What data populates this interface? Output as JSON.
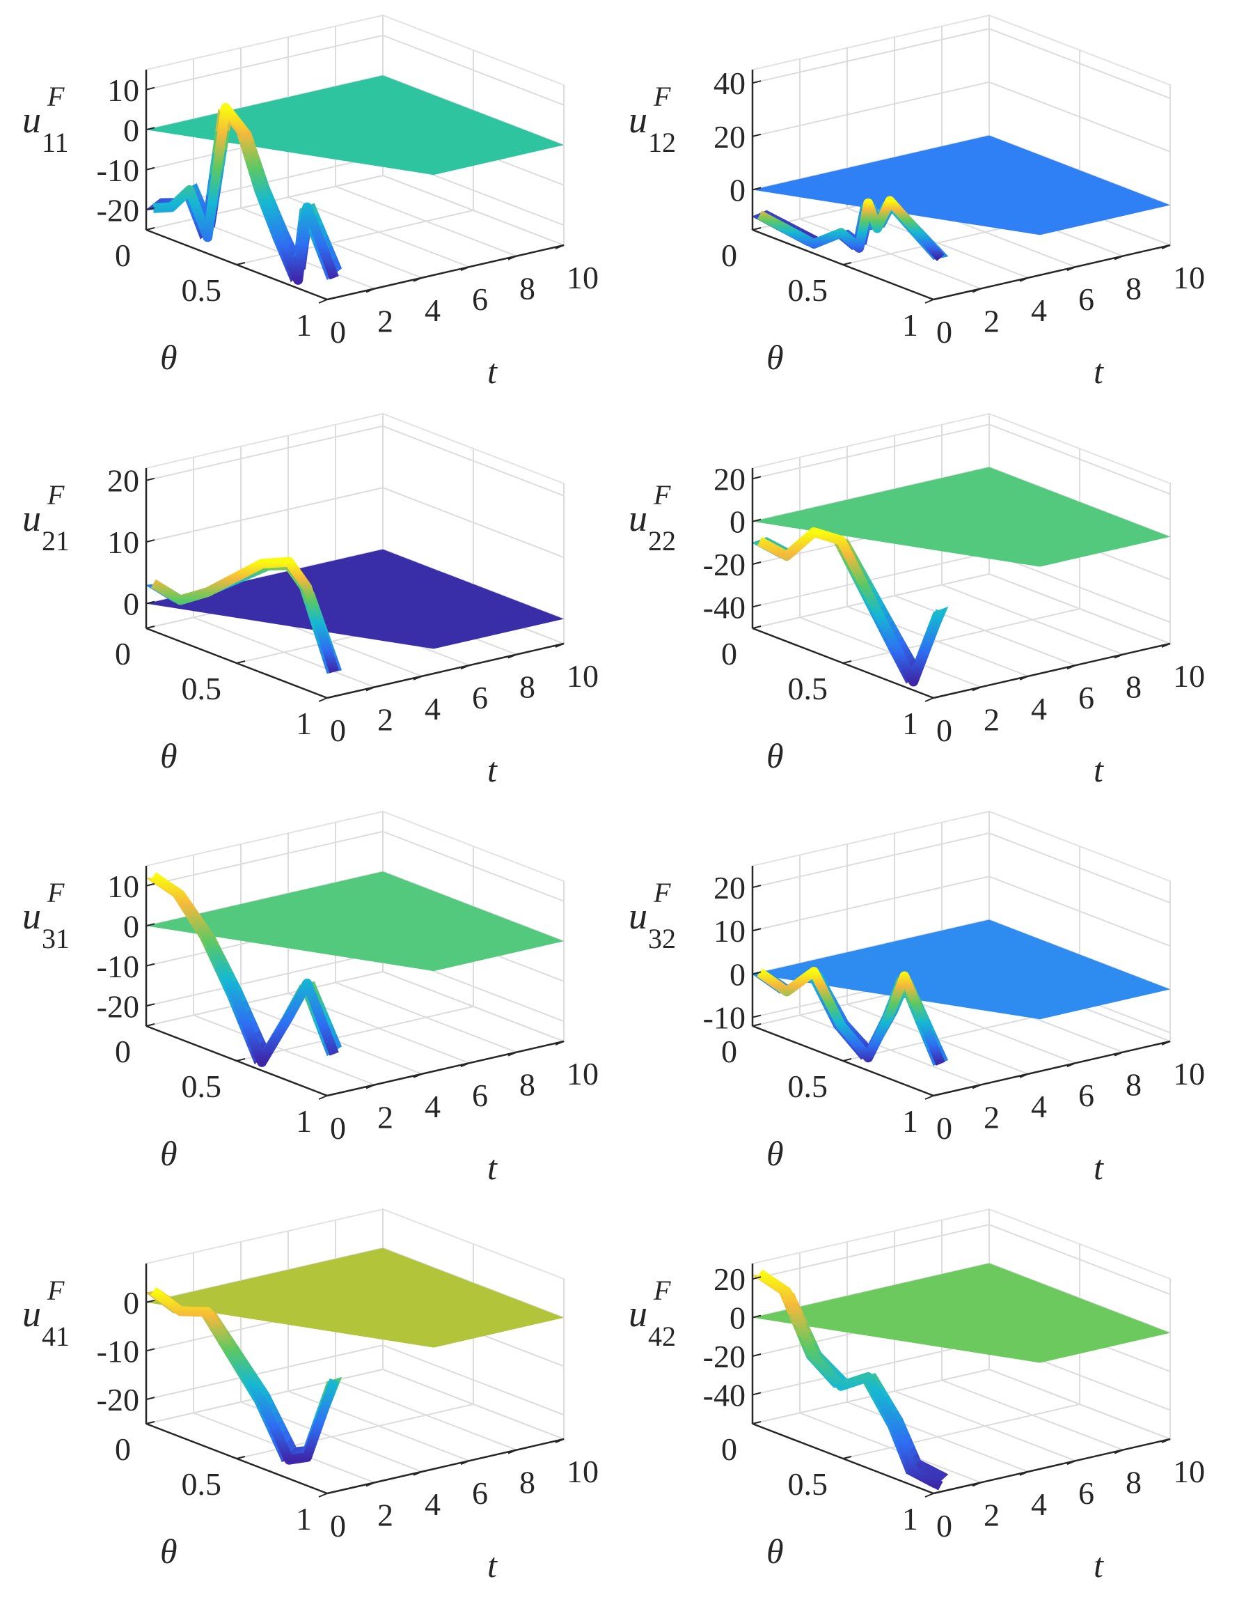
{
  "chart_data": [
    {
      "type": "surface",
      "panel": "u11",
      "zlabel": {
        "base": "u",
        "sup": "F",
        "sub": "11"
      },
      "xlabel": "t",
      "ylabel": "θ",
      "xlim": [
        0,
        10
      ],
      "ylim": [
        0,
        1
      ],
      "zlim": [
        -25,
        15
      ],
      "xticks": [
        "0",
        "2",
        "4",
        "6",
        "8",
        "10"
      ],
      "yticks": [
        "0",
        "0.5",
        "1"
      ],
      "zticks": [
        "10",
        "0",
        "-10",
        "-20"
      ],
      "plateau_value": 0,
      "plateau_color": "#2ec4a0",
      "profile": [
        {
          "theta": 0.0,
          "value": -20
        },
        {
          "theta": 0.1,
          "value": -18
        },
        {
          "theta": 0.2,
          "value": -12
        },
        {
          "theta": 0.3,
          "value": -22
        },
        {
          "theta": 0.4,
          "value": 12
        },
        {
          "theta": 0.5,
          "value": 8
        },
        {
          "theta": 0.6,
          "value": -5
        },
        {
          "theta": 0.7,
          "value": -15
        },
        {
          "theta": 0.8,
          "value": -24
        },
        {
          "theta": 0.85,
          "value": -5
        },
        {
          "theta": 1.0,
          "value": -20
        }
      ]
    },
    {
      "type": "surface",
      "panel": "u12",
      "zlabel": {
        "base": "u",
        "sup": "F",
        "sub": "12"
      },
      "xlabel": "t",
      "ylabel": "θ",
      "xlim": [
        0,
        10
      ],
      "ylim": [
        0,
        1
      ],
      "zlim": [
        -15,
        45
      ],
      "xticks": [
        "0",
        "2",
        "4",
        "6",
        "8",
        "10"
      ],
      "yticks": [
        "0",
        "0.5",
        "1"
      ],
      "zticks": [
        "40",
        "20",
        "0"
      ],
      "plateau_value": 0,
      "plateau_color": "#2f7ff5",
      "profile": [
        {
          "theta": 0.0,
          "value": -10
        },
        {
          "theta": 0.2,
          "value": -12
        },
        {
          "theta": 0.3,
          "value": -13
        },
        {
          "theta": 0.45,
          "value": -5
        },
        {
          "theta": 0.55,
          "value": -8
        },
        {
          "theta": 0.6,
          "value": 10
        },
        {
          "theta": 0.65,
          "value": 2
        },
        {
          "theta": 0.72,
          "value": 14
        },
        {
          "theta": 1.0,
          "value": 0
        }
      ]
    },
    {
      "type": "surface",
      "panel": "u21",
      "zlabel": {
        "base": "u",
        "sup": "F",
        "sub": "21"
      },
      "xlabel": "t",
      "ylabel": "θ",
      "xlim": [
        0,
        10
      ],
      "ylim": [
        0,
        1
      ],
      "zlim": [
        -4,
        22
      ],
      "xticks": [
        "0",
        "2",
        "4",
        "6",
        "8",
        "10"
      ],
      "yticks": [
        "0",
        "0.5",
        "1"
      ],
      "zticks": [
        "20",
        "10",
        "0"
      ],
      "plateau_value": 0,
      "plateau_color": "#3a2ea8",
      "profile": [
        {
          "theta": 0.0,
          "value": 3
        },
        {
          "theta": 0.15,
          "value": 2
        },
        {
          "theta": 0.3,
          "value": 5
        },
        {
          "theta": 0.45,
          "value": 9
        },
        {
          "theta": 0.6,
          "value": 13
        },
        {
          "theta": 0.75,
          "value": 15
        },
        {
          "theta": 0.85,
          "value": 12
        },
        {
          "theta": 1.0,
          "value": 0
        }
      ]
    },
    {
      "type": "surface",
      "panel": "u22",
      "zlabel": {
        "base": "u",
        "sup": "F",
        "sub": "22"
      },
      "xlabel": "t",
      "ylabel": "θ",
      "xlim": [
        0,
        10
      ],
      "ylim": [
        0,
        1
      ],
      "zlim": [
        -50,
        25
      ],
      "xticks": [
        "0",
        "2",
        "4",
        "6",
        "8",
        "10"
      ],
      "yticks": [
        "0",
        "0.5",
        "1"
      ],
      "zticks": [
        "20",
        "0",
        "-20",
        "-40"
      ],
      "plateau_value": 0,
      "plateau_color": "#52c97c",
      "profile": [
        {
          "theta": 0.0,
          "value": -10
        },
        {
          "theta": 0.15,
          "value": -12
        },
        {
          "theta": 0.3,
          "value": 4
        },
        {
          "theta": 0.45,
          "value": 5
        },
        {
          "theta": 0.6,
          "value": -15
        },
        {
          "theta": 0.75,
          "value": -35
        },
        {
          "theta": 0.85,
          "value": -48
        },
        {
          "theta": 1.0,
          "value": -10
        }
      ]
    },
    {
      "type": "surface",
      "panel": "u31",
      "zlabel": {
        "base": "u",
        "sup": "F",
        "sub": "31"
      },
      "xlabel": "t",
      "ylabel": "θ",
      "xlim": [
        0,
        10
      ],
      "ylim": [
        0,
        1
      ],
      "zlim": [
        -25,
        15
      ],
      "xticks": [
        "0",
        "2",
        "4",
        "6",
        "8",
        "10"
      ],
      "yticks": [
        "0",
        "0.5",
        "1"
      ],
      "zticks": [
        "10",
        "0",
        "-10",
        "-20"
      ],
      "plateau_value": 0,
      "plateau_color": "#52c97c",
      "profile": [
        {
          "theta": 0.0,
          "value": 12
        },
        {
          "theta": 0.15,
          "value": 10
        },
        {
          "theta": 0.3,
          "value": 2
        },
        {
          "theta": 0.45,
          "value": -10
        },
        {
          "theta": 0.6,
          "value": -24
        },
        {
          "theta": 0.75,
          "value": -10
        },
        {
          "theta": 0.85,
          "value": 0
        },
        {
          "theta": 1.0,
          "value": -15
        }
      ]
    },
    {
      "type": "surface",
      "panel": "u32",
      "zlabel": {
        "base": "u",
        "sup": "F",
        "sub": "32"
      },
      "xlabel": "t",
      "ylabel": "θ",
      "xlim": [
        0,
        10
      ],
      "ylim": [
        0,
        1
      ],
      "zlim": [
        -12,
        25
      ],
      "xticks": [
        "0",
        "2",
        "4",
        "6",
        "8",
        "10"
      ],
      "yticks": [
        "0",
        "0.5",
        "1"
      ],
      "zticks": [
        "20",
        "10",
        "0",
        "-10"
      ],
      "plateau_value": 0,
      "plateau_color": "#2e8bef",
      "profile": [
        {
          "theta": 0.0,
          "value": 0
        },
        {
          "theta": 0.15,
          "value": -2
        },
        {
          "theta": 0.3,
          "value": 5
        },
        {
          "theta": 0.45,
          "value": -5
        },
        {
          "theta": 0.6,
          "value": -10
        },
        {
          "theta": 0.72,
          "value": 2
        },
        {
          "theta": 0.8,
          "value": 12
        },
        {
          "theta": 1.0,
          "value": -5
        }
      ]
    },
    {
      "type": "surface",
      "panel": "u41",
      "zlabel": {
        "base": "u",
        "sup": "F",
        "sub": "41"
      },
      "xlabel": "t",
      "ylabel": "θ",
      "xlim": [
        0,
        10
      ],
      "ylim": [
        0,
        1
      ],
      "zlim": [
        -25,
        8
      ],
      "xticks": [
        "0",
        "2",
        "4",
        "6",
        "8",
        "10"
      ],
      "yticks": [
        "0",
        "0.5",
        "1"
      ],
      "zticks": [
        "0",
        "-10",
        "-20"
      ],
      "plateau_value": 0,
      "plateau_color": "#b1c43a",
      "profile": [
        {
          "theta": 0.0,
          "value": 2
        },
        {
          "theta": 0.15,
          "value": 0
        },
        {
          "theta": 0.3,
          "value": 2
        },
        {
          "theta": 0.45,
          "value": -5
        },
        {
          "theta": 0.6,
          "value": -12
        },
        {
          "theta": 0.75,
          "value": -22
        },
        {
          "theta": 0.85,
          "value": -20
        },
        {
          "theta": 1.0,
          "value": -2
        }
      ]
    },
    {
      "type": "surface",
      "panel": "u42",
      "zlabel": {
        "base": "u",
        "sup": "F",
        "sub": "42"
      },
      "xlabel": "t",
      "ylabel": "θ",
      "xlim": [
        0,
        10
      ],
      "ylim": [
        0,
        1
      ],
      "zlim": [
        -55,
        28
      ],
      "xticks": [
        "0",
        "2",
        "4",
        "6",
        "8",
        "10"
      ],
      "yticks": [
        "0",
        "0.5",
        "1"
      ],
      "zticks": [
        "20",
        "0",
        "-20",
        "-40"
      ],
      "plateau_value": 0,
      "plateau_color": "#6cc95e",
      "profile": [
        {
          "theta": 0.0,
          "value": 22
        },
        {
          "theta": 0.15,
          "value": 18
        },
        {
          "theta": 0.3,
          "value": -10
        },
        {
          "theta": 0.45,
          "value": -20
        },
        {
          "theta": 0.6,
          "value": -10
        },
        {
          "theta": 0.75,
          "value": -30
        },
        {
          "theta": 0.85,
          "value": -50
        },
        {
          "theta": 1.0,
          "value": -52
        }
      ]
    }
  ]
}
